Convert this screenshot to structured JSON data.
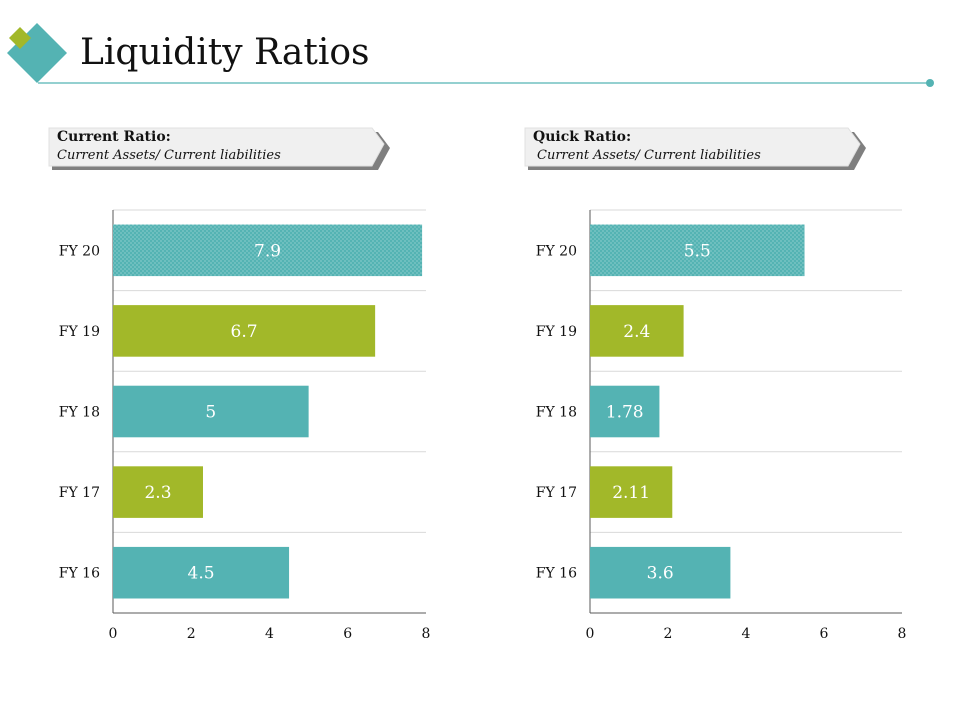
{
  "slide": {
    "title": "Liquidity Ratios"
  },
  "colors": {
    "teal": "#54B3B3",
    "green": "#A2B829",
    "grid": "#D9D9D9",
    "axis": "#595959",
    "ribbon_fill": "#F0F0F0",
    "ribbon_shadow": "#7F7F7F"
  },
  "left_panel": {
    "heading": "Current Ratio:",
    "formula": "Current Assets/ Current liabilities"
  },
  "right_panel": {
    "heading": "Quick Ratio:",
    "formula": "Current Assets/ Current liabilities"
  },
  "chart_data": [
    {
      "type": "bar",
      "orientation": "horizontal",
      "title": "Current Ratio",
      "categories": [
        "FY 20",
        "FY 19",
        "FY 18",
        "FY 17",
        "FY 16"
      ],
      "values": [
        7.9,
        6.7,
        5,
        2.3,
        4.5
      ],
      "value_labels": [
        "7.9",
        "6.7",
        "5",
        "2.3",
        "4.5"
      ],
      "bar_colors": [
        "teal",
        "green",
        "teal",
        "green",
        "teal"
      ],
      "patterned": [
        true,
        false,
        false,
        false,
        false
      ],
      "xlim": [
        0,
        8
      ],
      "xticks": [
        0,
        2,
        4,
        6,
        8
      ],
      "xlabel": "",
      "ylabel": "",
      "grid": true
    },
    {
      "type": "bar",
      "orientation": "horizontal",
      "title": "Quick Ratio",
      "categories": [
        "FY 20",
        "FY 19",
        "FY 18",
        "FY 17",
        "FY 16"
      ],
      "values": [
        5.5,
        2.4,
        1.78,
        2.11,
        3.6
      ],
      "value_labels": [
        "5.5",
        "2.4",
        "1.78",
        "2.11",
        "3.6"
      ],
      "bar_colors": [
        "teal",
        "green",
        "teal",
        "green",
        "teal"
      ],
      "patterned": [
        true,
        false,
        false,
        false,
        false
      ],
      "xlim": [
        0,
        8
      ],
      "xticks": [
        0,
        2,
        4,
        6,
        8
      ],
      "xlabel": "",
      "ylabel": "",
      "grid": true
    }
  ]
}
